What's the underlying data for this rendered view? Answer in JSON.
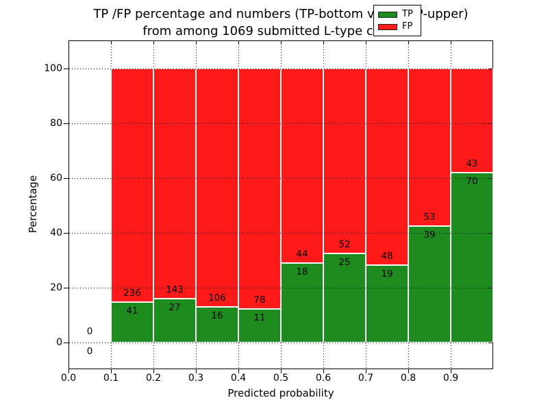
{
  "chart_data": {
    "type": "bar",
    "stacked": true,
    "normalized_percent": true,
    "title_lines": [
      "TP /FP percentage and numbers (TP-bottom value, FP-upper)",
      "from among 1069 submitted L-type contacts"
    ],
    "total_contacts": 1069,
    "xlabel": "Predicted probability",
    "ylabel": "Percentage",
    "x_tick_labels": [
      "0.0",
      "0.1",
      "0.2",
      "0.3",
      "0.4",
      "0.5",
      "0.6",
      "0.7",
      "0.8",
      "0.9"
    ],
    "y_tick_labels": [
      "0",
      "20",
      "40",
      "60",
      "80",
      "100"
    ],
    "xlim": [
      0.0,
      1.0
    ],
    "ylim": [
      -10,
      110
    ],
    "grid": "dotted",
    "bin_width": 0.1,
    "bins": [
      {
        "x_start": 0.0,
        "tp": 0,
        "fp": 0
      },
      {
        "x_start": 0.1,
        "tp": 41,
        "fp": 236
      },
      {
        "x_start": 0.2,
        "tp": 27,
        "fp": 143
      },
      {
        "x_start": 0.3,
        "tp": 16,
        "fp": 106
      },
      {
        "x_start": 0.4,
        "tp": 11,
        "fp": 78
      },
      {
        "x_start": 0.5,
        "tp": 18,
        "fp": 44
      },
      {
        "x_start": 0.6,
        "tp": 25,
        "fp": 52
      },
      {
        "x_start": 0.7,
        "tp": 19,
        "fp": 48
      },
      {
        "x_start": 0.8,
        "tp": 39,
        "fp": 53
      },
      {
        "x_start": 0.9,
        "tp": 70,
        "fp": 43
      }
    ],
    "legend": {
      "position": "upper right",
      "items": [
        {
          "label": "TP",
          "color": "#1e8b1e"
        },
        {
          "label": "FP",
          "color": "#ff1a1a"
        }
      ]
    },
    "colors": {
      "tp": "#1e8b1e",
      "fp": "#ff1a1a",
      "grid": "#000000",
      "background": "#ffffff"
    }
  }
}
